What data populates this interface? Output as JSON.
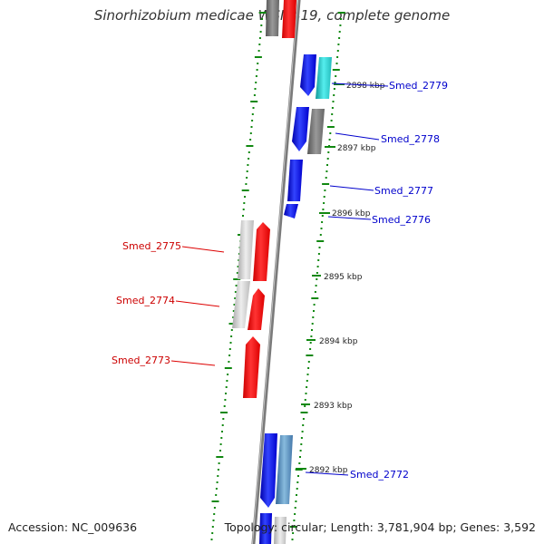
{
  "header": {
    "title": "Sinorhizobium medicae WSM419, complete genome"
  },
  "footer": {
    "accession": "Accession: NC_009636",
    "topology": "Topology: circular; Length: 3,781,904 bp; Genes: 3,592"
  },
  "colors": {
    "forward_gene": "#0000ee",
    "reverse_gene": "#ee0000",
    "grey_gene": "#777777",
    "light_gene": "#cccccc",
    "cyan_gene": "#22cccc",
    "steel_gene": "#5588bb",
    "tick_marks": "#118811",
    "backbone": "#808080"
  },
  "scale": {
    "ticks": [
      {
        "label": "2898 kbp"
      },
      {
        "label": "2897 kbp"
      },
      {
        "label": "2896 kbp"
      },
      {
        "label": "2895 kbp"
      },
      {
        "label": "2894 kbp"
      },
      {
        "label": "2893 kbp"
      },
      {
        "label": "2892 kbp"
      }
    ]
  },
  "genes": [
    {
      "label": "Smed_2779",
      "strand": "forward"
    },
    {
      "label": "Smed_2778",
      "strand": "forward"
    },
    {
      "label": "Smed_2777",
      "strand": "forward"
    },
    {
      "label": "Smed_2776",
      "strand": "forward"
    },
    {
      "label": "Smed_2775",
      "strand": "reverse"
    },
    {
      "label": "Smed_2774",
      "strand": "reverse"
    },
    {
      "label": "Smed_2773",
      "strand": "reverse"
    },
    {
      "label": "Smed_2772",
      "strand": "forward"
    }
  ]
}
